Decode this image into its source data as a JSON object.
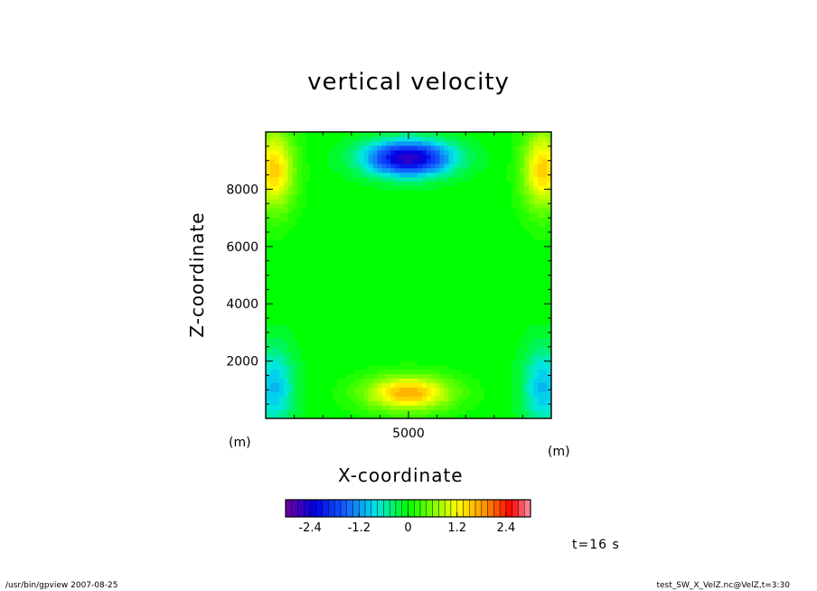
{
  "chart_data": {
    "type": "heatmap",
    "title": "vertical velocity",
    "xlabel": "X-coordinate",
    "ylabel": "Z-coordinate",
    "x_unit_label": "(m)",
    "z_unit_label": "(m)",
    "xlim": [
      0,
      10000
    ],
    "ylim": [
      0,
      10000
    ],
    "x_ticks": [
      5000
    ],
    "y_ticks": [
      2000,
      4000,
      6000,
      8000
    ],
    "colorbar": {
      "min": -3.0,
      "max": 3.0,
      "step": 0.15,
      "tick_values": [
        -2.4,
        -1.2,
        0,
        1.2,
        2.4
      ],
      "tick_labels": [
        "-2.4",
        "-1.2",
        "0",
        "1.2",
        "2.4"
      ]
    },
    "features": [
      {
        "x": 5000,
        "z": 9100,
        "value": -2.6
      },
      {
        "x": 5000,
        "z": 900,
        "value": 1.7
      },
      {
        "x": 300,
        "z": 8700,
        "value": 1.5
      },
      {
        "x": 9700,
        "z": 8700,
        "value": 1.5
      },
      {
        "x": 300,
        "z": 1100,
        "value": -1.0
      },
      {
        "x": 9700,
        "z": 1100,
        "value": -1.0
      }
    ]
  },
  "time_label": "t=16 s",
  "footer": {
    "left": "/usr/bin/gpview   2007-08-25",
    "right": "test_SW_X_VelZ.nc@VelZ,t=3:30"
  }
}
